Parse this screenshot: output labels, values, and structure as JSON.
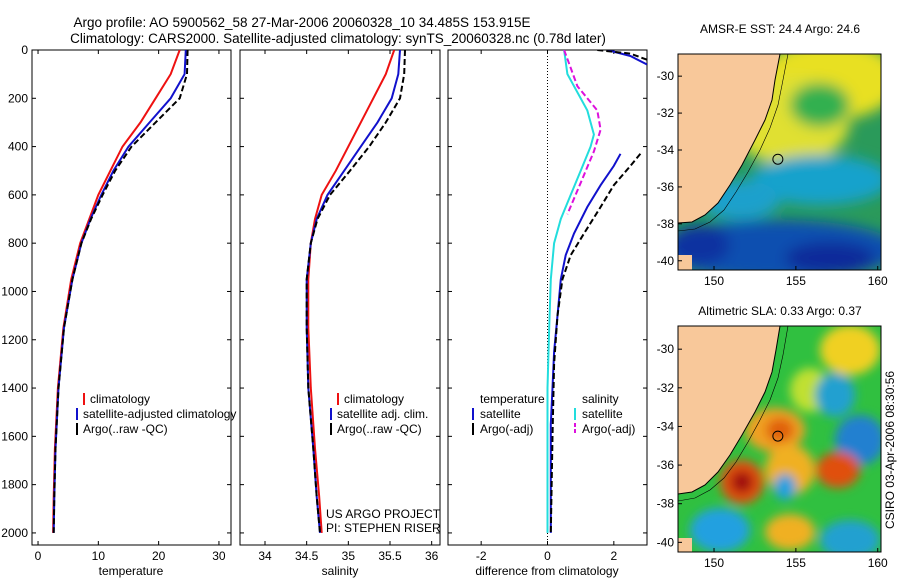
{
  "title_line1": "Argo profile: AO 5900562_58 27-Mar-2006 20060328_10 34.485S 153.915E",
  "title_line2": "Climatology: CARS2000. Satellite-adjusted climatology: synTS_20060328.nc (0.78d later)",
  "colors": {
    "climatology": "#ee1111",
    "satellite": "#1111cc",
    "argo": "#000000",
    "cyan": "#22dddd",
    "magenta": "#dd11dd",
    "land": "#f8c89a"
  },
  "chart_data": [
    {
      "type": "line",
      "id": "temp",
      "xlabel": "temperature",
      "ylabel": "",
      "xlim": [
        -1,
        32
      ],
      "ylim": [
        2050,
        0
      ],
      "xticks": [
        0,
        10,
        20,
        30
      ],
      "yticks": [
        0,
        200,
        400,
        600,
        800,
        1000,
        1200,
        1400,
        1600,
        1800,
        2000
      ],
      "series": [
        {
          "name": "climatology",
          "color": "climatology",
          "dash": "",
          "x": [
            23.5,
            22,
            19.5,
            17,
            14,
            12,
            10,
            8.5,
            7,
            5.5,
            4.2,
            3.3,
            2.8,
            2.6,
            2.5
          ],
          "y": [
            0,
            100,
            200,
            300,
            400,
            500,
            600,
            700,
            800,
            950,
            1150,
            1400,
            1650,
            1850,
            2000
          ]
        },
        {
          "name": "satellite-adjusted climatology",
          "color": "satellite",
          "dash": "",
          "x": [
            24.5,
            24.3,
            22,
            18.5,
            15,
            12.5,
            10.5,
            8.7,
            7.2,
            5.7,
            4.3,
            3.4,
            2.9,
            2.7,
            2.6
          ],
          "y": [
            0,
            100,
            200,
            300,
            400,
            500,
            600,
            700,
            800,
            950,
            1150,
            1400,
            1650,
            1850,
            2000
          ]
        },
        {
          "name": "Argo(..raw -QC)",
          "color": "argo",
          "dash": "6,3",
          "x": [
            24.8,
            24.7,
            23.5,
            19.5,
            15.5,
            12.8,
            10.7,
            8.8,
            7.2,
            5.7,
            4.3,
            3.4,
            2.9,
            2.7,
            2.6
          ],
          "y": [
            0,
            100,
            200,
            300,
            400,
            500,
            600,
            700,
            800,
            950,
            1150,
            1400,
            1650,
            1850,
            2000
          ]
        }
      ],
      "legend": [
        "climatology",
        "satellite-adjusted climatology",
        "Argo(..raw -QC)"
      ]
    },
    {
      "type": "line",
      "id": "sal",
      "xlabel": "salinity",
      "ylabel": "",
      "xlim": [
        33.7,
        36.1
      ],
      "ylim": [
        2050,
        0
      ],
      "xticks": [
        34,
        34.5,
        35,
        35.5,
        36
      ],
      "yticks": [],
      "series": [
        {
          "name": "climatology",
          "color": "climatology",
          "dash": "",
          "x": [
            35.55,
            35.45,
            35.3,
            35.15,
            35.0,
            34.85,
            34.68,
            34.6,
            34.55,
            34.52,
            34.52,
            34.55,
            34.6,
            34.65,
            34.68
          ],
          "y": [
            0,
            100,
            200,
            300,
            400,
            500,
            600,
            700,
            800,
            950,
            1150,
            1400,
            1650,
            1850,
            2000
          ]
        },
        {
          "name": "satellite adj. clim.",
          "color": "satellite",
          "dash": "",
          "x": [
            35.62,
            35.6,
            35.52,
            35.35,
            35.15,
            34.95,
            34.75,
            34.62,
            34.55,
            34.5,
            34.5,
            34.52,
            34.58,
            34.62,
            34.66
          ],
          "y": [
            0,
            100,
            200,
            300,
            400,
            500,
            600,
            700,
            800,
            950,
            1150,
            1400,
            1650,
            1850,
            2000
          ]
        },
        {
          "name": "Argo(..raw -QC)",
          "color": "argo",
          "dash": "6,3",
          "x": [
            35.68,
            35.67,
            35.62,
            35.45,
            35.25,
            35.02,
            34.78,
            34.63,
            34.55,
            34.5,
            34.5,
            34.52,
            34.58,
            34.62,
            34.66
          ],
          "y": [
            0,
            100,
            200,
            300,
            400,
            500,
            600,
            700,
            800,
            950,
            1150,
            1400,
            1650,
            1850,
            2000
          ]
        }
      ],
      "legend": [
        "climatology",
        "satellite adj. clim.",
        "Argo(..raw -QC)"
      ]
    },
    {
      "type": "line",
      "id": "diff",
      "xlabel": "difference from climatology",
      "ylabel": "",
      "xlim": [
        -3,
        3
      ],
      "ylim": [
        2050,
        0
      ],
      "xticks": [
        -2,
        0,
        2
      ],
      "yticks": [],
      "series": [
        {
          "name": "temperature satellite",
          "color": "satellite",
          "dash": "",
          "x": [
            2.2,
            2.0,
            1.6,
            1.2,
            0.8,
            0.55,
            0.4,
            0.3,
            0.2,
            0.15,
            0.1,
            0.1,
            0.1,
            0.1
          ],
          "y": [
            430,
            480,
            560,
            650,
            760,
            850,
            950,
            1100,
            1250,
            1400,
            1550,
            1700,
            1850,
            2000
          ]
        },
        {
          "name": "temperature Argo(-adj)",
          "color": "argo",
          "dash": "6,3",
          "x": [
            2.8,
            2.5,
            2.0,
            1.6,
            1.1,
            0.7,
            0.45,
            0.3,
            0.2,
            0.15,
            0.1
          ],
          "y": [
            430,
            480,
            560,
            650,
            760,
            850,
            950,
            1100,
            1300,
            1600,
            2000
          ]
        },
        {
          "name": "salinity satellite",
          "color": "cyan",
          "dash": "",
          "x": [
            0.5,
            0.6,
            1.2,
            1.4,
            1.3,
            1.0,
            0.7,
            0.4,
            0.2,
            0.1,
            0.05,
            0.0,
            0.0,
            0.0
          ],
          "y": [
            0,
            100,
            250,
            350,
            400,
            500,
            600,
            700,
            800,
            950,
            1150,
            1400,
            1700,
            2000
          ]
        },
        {
          "name": "salinity Argo(-adj)",
          "color": "magenta",
          "dash": "6,3",
          "x": [
            0.5,
            0.9,
            1.5,
            1.6,
            1.4,
            1.0,
            0.6
          ],
          "y": [
            0,
            150,
            250,
            330,
            420,
            550,
            680
          ]
        },
        {
          "name": "temperature satellite (surface)",
          "color": "satellite",
          "dash": "",
          "x": [
            1.8,
            2.5,
            3.0
          ],
          "y": [
            0,
            25,
            60
          ]
        },
        {
          "name": "temperature Argo (surface)",
          "color": "argo",
          "dash": "6,3",
          "x": [
            1.5,
            2.5,
            3.0
          ],
          "y": [
            0,
            15,
            40
          ]
        }
      ],
      "legend_left_header": "temperature",
      "legend_right_header": "salinity",
      "legend": [
        "satellite",
        "Argo(-adj)",
        "satellite",
        "Argo(-adj)"
      ]
    },
    {
      "type": "heatmap",
      "id": "sst",
      "title": "AMSR-E SST: 24.4 Argo: 24.6",
      "xlim": [
        147.8,
        160.2
      ],
      "ylim": [
        -40.5,
        -28.8
      ],
      "xticks": [
        150,
        155,
        160
      ],
      "yticks": [
        -30,
        -32,
        -34,
        -36,
        -38,
        -40
      ],
      "argo_point": [
        153.9,
        -34.5
      ]
    },
    {
      "type": "heatmap",
      "id": "sla",
      "title": "Altimetric SLA: 0.33 Argo: 0.37",
      "xlim": [
        147.8,
        160.2
      ],
      "ylim": [
        -40.5,
        -28.8
      ],
      "xticks": [
        150,
        155,
        160
      ],
      "yticks": [
        -30,
        -32,
        -34,
        -36,
        -38,
        -40
      ],
      "argo_point": [
        153.9,
        -34.5
      ]
    }
  ],
  "credit": {
    "line1": "US ARGO PROJECT",
    "line2": "PI: STEPHEN RISER"
  },
  "side_stamp": "CSIRO 03-Apr-2006 08:30:56"
}
